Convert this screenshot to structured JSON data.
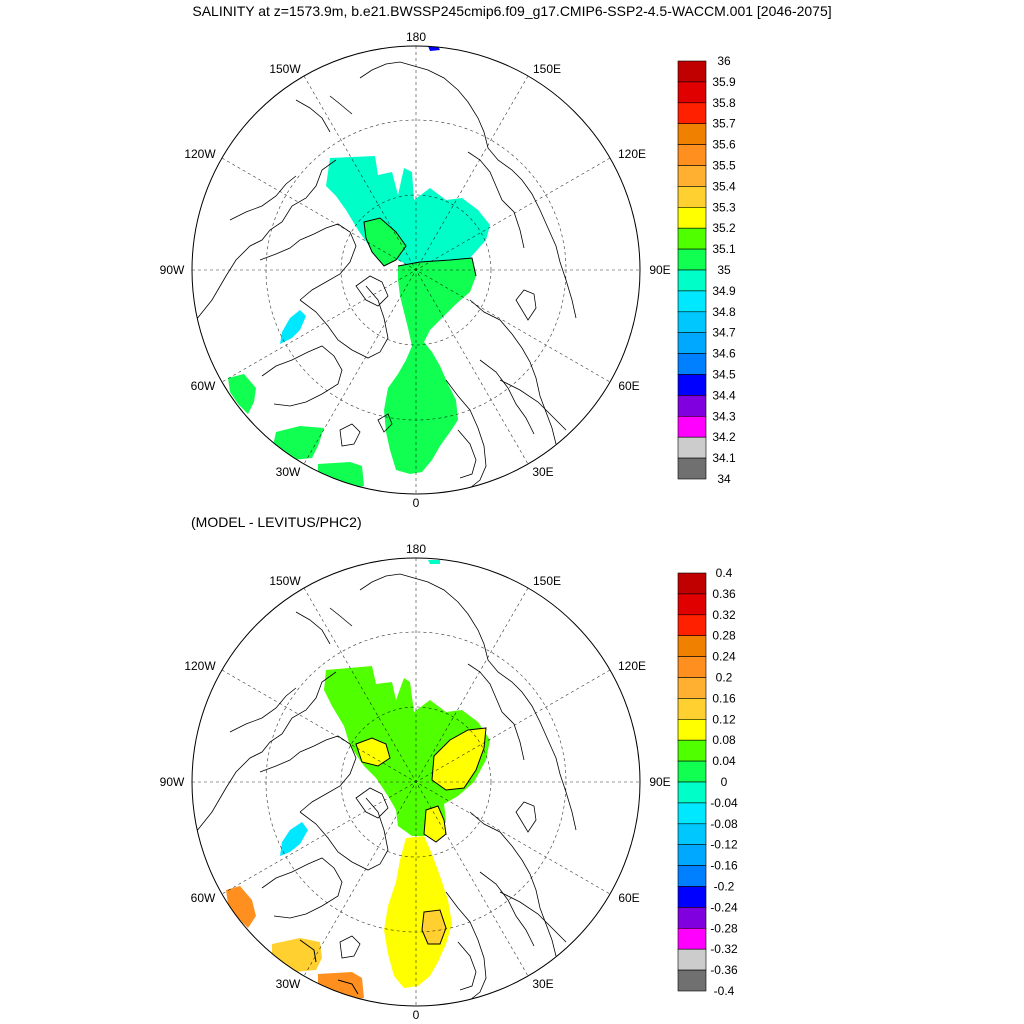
{
  "title": "SALINITY at z=1573.9m, b.e21.BWSSP245cmip6.f09_g17.CMIP6-SSP2-4.5-WACCM.001 [2046-2075]",
  "subtitle": "(MODEL - LEVITUS/PHC2)",
  "longitude_labels": [
    "180",
    "150E",
    "120E",
    "90E",
    "60E",
    "30E",
    "0",
    "30W",
    "60W",
    "90W",
    "120W",
    "150W"
  ],
  "projection": "north polar stereographic",
  "colors": {
    "land_outline": "#000000",
    "graticule": "#000000",
    "ocean_background": "#ffffff"
  },
  "top_panel": {
    "field": "salinity",
    "colorbar": {
      "labels": [
        "36",
        "35.9",
        "35.8",
        "35.7",
        "35.6",
        "35.5",
        "35.4",
        "35.3",
        "35.2",
        "35.1",
        "35",
        "34.9",
        "34.8",
        "34.7",
        "34.6",
        "34.5",
        "34.4",
        "34.3",
        "34.2",
        "34.1",
        "34"
      ],
      "colors": [
        "#c00000",
        "#e00000",
        "#ff2000",
        "#f08000",
        "#ff9020",
        "#ffb030",
        "#ffd030",
        "#ffff00",
        "#50ff00",
        "#10ff50",
        "#00ffc8",
        "#00e8ff",
        "#00c8ff",
        "#00a8ff",
        "#0080ff",
        "#0000ff",
        "#8000e0",
        "#ff00ff",
        "#cccccc",
        "#707070"
      ]
    }
  },
  "bottom_panel": {
    "field": "salinity difference",
    "colorbar": {
      "labels": [
        "0.4",
        "0.36",
        "0.32",
        "0.28",
        "0.24",
        "0.2",
        "0.16",
        "0.12",
        "0.08",
        "0.04",
        "0",
        "-0.04",
        "-0.08",
        "-0.12",
        "-0.16",
        "-0.2",
        "-0.24",
        "-0.28",
        "-0.32",
        "-0.36",
        "-0.4"
      ],
      "colors": [
        "#c00000",
        "#e00000",
        "#ff2000",
        "#f08000",
        "#ff9020",
        "#ffb030",
        "#ffd030",
        "#ffff00",
        "#50ff00",
        "#10ff50",
        "#00ffc8",
        "#00e8ff",
        "#00c8ff",
        "#00a8ff",
        "#0080ff",
        "#0000ff",
        "#8000e0",
        "#ff00ff",
        "#cccccc",
        "#707070"
      ]
    }
  }
}
